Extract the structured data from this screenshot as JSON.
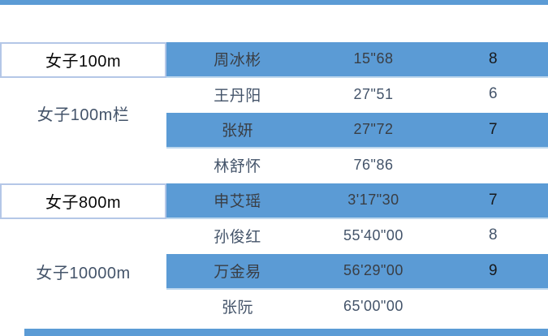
{
  "colors": {
    "accent_blue": "#5B9BD5",
    "row_separator_blue": "#BDD7EE",
    "event_cell_border": "#B4C7E7",
    "slate_text": "#44546A",
    "dark_text_on_blue": "#3a3e44",
    "background": "#ffffff"
  },
  "table": {
    "groups": [
      {
        "event": "女子100m",
        "event_style": "highlight",
        "rows": [
          {
            "name": "周冰彬",
            "time": "15\"68",
            "score": "8",
            "highlight": true
          }
        ]
      },
      {
        "event": "女子100m栏",
        "event_style": "plain",
        "rows": [
          {
            "name": "王丹阳",
            "time": "27\"51",
            "score": "6",
            "highlight": false
          },
          {
            "name": "张妍",
            "time": "27\"72",
            "score": "7",
            "highlight": true
          }
        ]
      },
      {
        "event": "",
        "event_style": "plain",
        "rows": [
          {
            "name": "林舒怀",
            "time": "76\"86",
            "score": "",
            "highlight": false
          }
        ]
      },
      {
        "event": "女子800m",
        "event_style": "highlight",
        "rows": [
          {
            "name": "申艾瑶",
            "time": "3'17\"30",
            "score": "7",
            "highlight": true
          }
        ]
      },
      {
        "event": "女子10000m",
        "event_style": "plain",
        "rows": [
          {
            "name": "孙俊红",
            "time": "55'40\"00",
            "score": "8",
            "highlight": false
          },
          {
            "name": "万金易",
            "time": "56'29\"00",
            "score": "9",
            "highlight": true
          },
          {
            "name": "张阮",
            "time": "65'00\"00",
            "score": "",
            "highlight": false
          }
        ]
      }
    ]
  }
}
